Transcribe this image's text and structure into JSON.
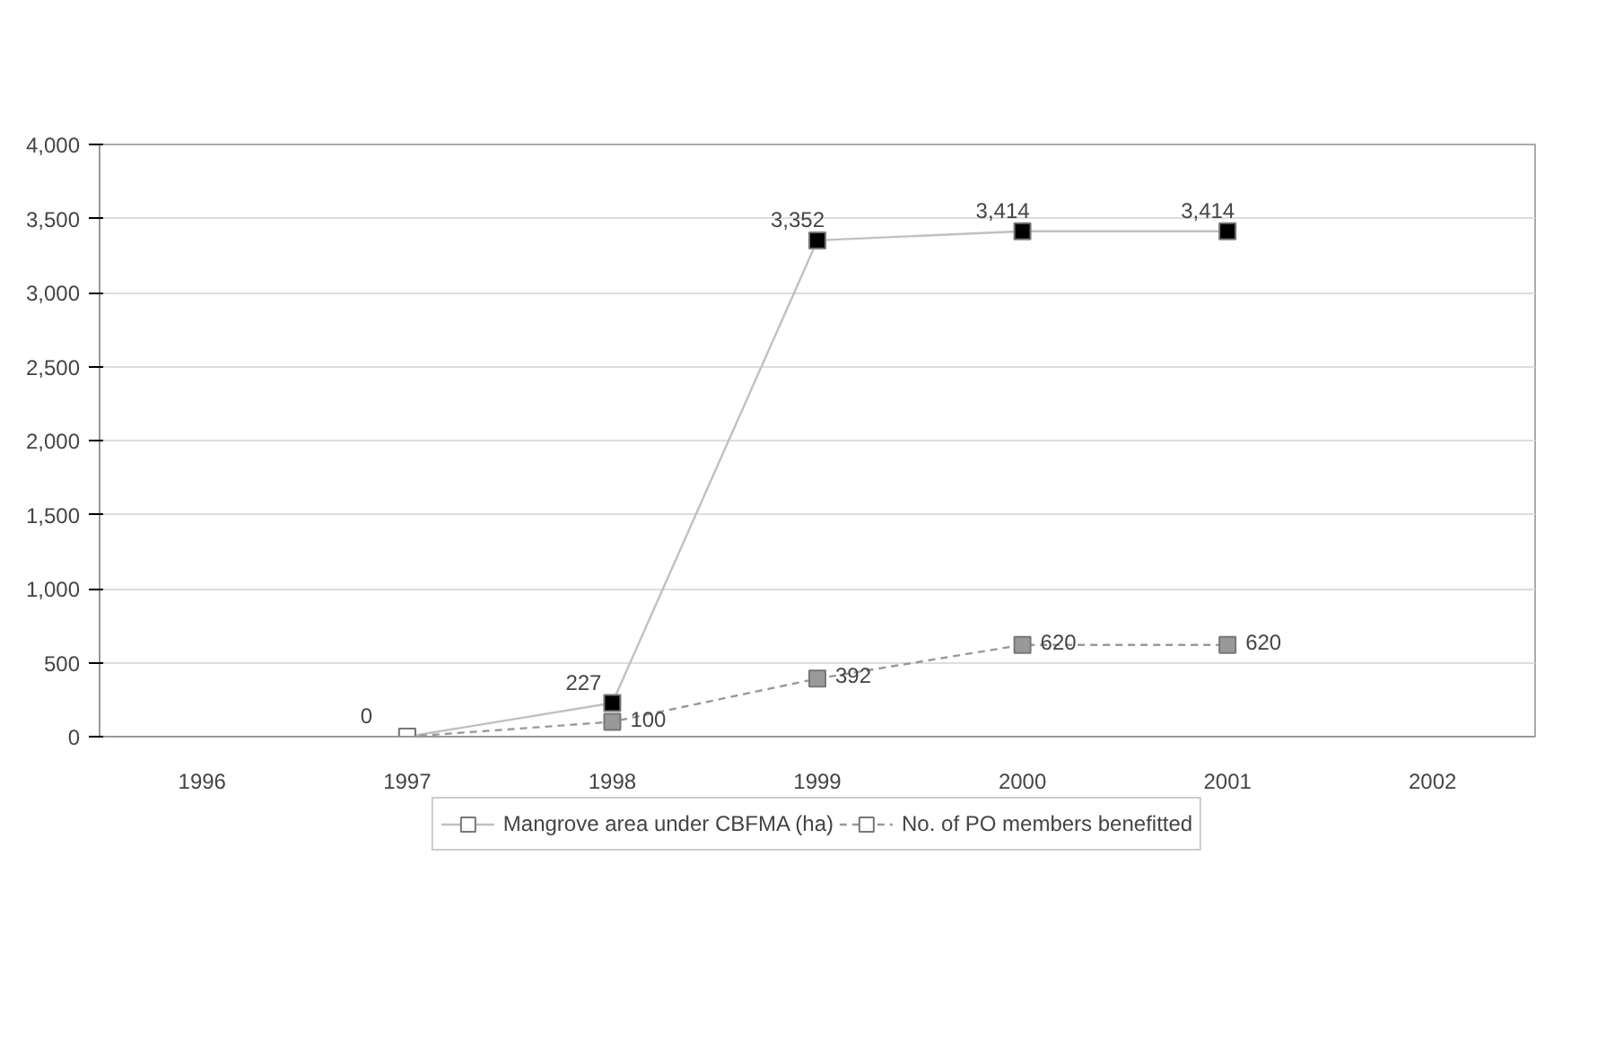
{
  "chart_data": {
    "type": "line",
    "categories": [
      "1996",
      "1997",
      "1998",
      "1999",
      "2000",
      "2001",
      "2002"
    ],
    "ylim": [
      0,
      4000
    ],
    "yticks": [
      {
        "value": 0,
        "label": "0"
      },
      {
        "value": 500,
        "label": "500"
      },
      {
        "value": 1000,
        "label": "1,000"
      },
      {
        "value": 1500,
        "label": "1,500"
      },
      {
        "value": 2000,
        "label": "2,000"
      },
      {
        "value": 2500,
        "label": "2,500"
      },
      {
        "value": 3000,
        "label": "3,000"
      },
      {
        "value": 3500,
        "label": "3,500"
      },
      {
        "value": 4000,
        "label": "4,000"
      }
    ],
    "grid": "y",
    "legend": "bottom",
    "marker": "square",
    "series": [
      {
        "name": "Mangrove area under CBFMA (ha)",
        "color": "#c0c0c0",
        "colors": [
          null,
          "#ffffff",
          "#000000",
          "#000000",
          "#000000",
          "#000000",
          null
        ],
        "line_style": "solid",
        "values": [
          null,
          0,
          227,
          3352,
          3414,
          3414,
          null
        ],
        "value_labels": [
          null,
          "0",
          "227",
          "3,352",
          "3,414",
          "3,414",
          null
        ]
      },
      {
        "name": "No. of PO members benefitted",
        "color": "#999999",
        "colors": [
          null,
          "#ffffff",
          "#999999",
          "#999999",
          "#999999",
          "#999999",
          null
        ],
        "line_style": "dashed",
        "values": [
          null,
          0,
          100,
          392,
          620,
          620,
          null
        ],
        "value_labels": [
          null,
          null,
          "100",
          "392",
          "620",
          "620",
          null
        ]
      }
    ]
  }
}
